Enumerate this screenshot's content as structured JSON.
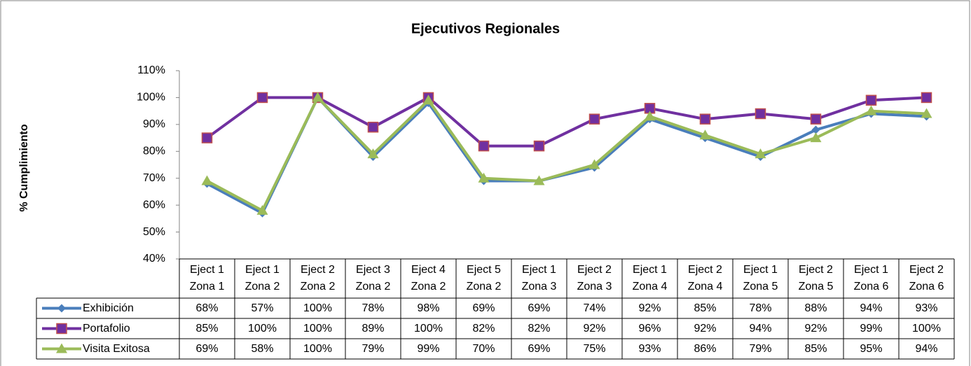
{
  "chart_data": {
    "type": "line",
    "title": "Ejecutivos Regionales",
    "y_label": "% Cumplimiento",
    "categories": [
      "Eject 1 Zona 1",
      "Eject 1 Zona 2",
      "Eject 2 Zona 2",
      "Eject 3 Zona 2",
      "Eject 4 Zona 2",
      "Eject 5 Zona 2",
      "Eject 1 Zona 3",
      "Eject 2 Zona 3",
      "Eject 1 Zona 4",
      "Eject 2 Zona 4",
      "Eject 1 Zona 5",
      "Eject 2 Zona 5",
      "Eject 1 Zona 6",
      "Eject 2 Zona 6"
    ],
    "series": [
      {
        "name": "Exhibición",
        "color": "#4a7ebb",
        "marker": "diamond",
        "values": [
          68,
          57,
          100,
          78,
          98,
          69,
          69,
          74,
          92,
          85,
          78,
          88,
          94,
          93
        ],
        "value_labels": [
          "68%",
          "57%",
          "100%",
          "78%",
          "98%",
          "69%",
          "69%",
          "74%",
          "92%",
          "85%",
          "78%",
          "88%",
          "94%",
          "93%"
        ]
      },
      {
        "name": "Portafolio",
        "color": "#7030a0",
        "marker": "square",
        "values": [
          85,
          100,
          100,
          89,
          100,
          82,
          82,
          92,
          96,
          92,
          94,
          92,
          99,
          100
        ],
        "value_labels": [
          "85%",
          "100%",
          "100%",
          "89%",
          "100%",
          "82%",
          "82%",
          "92%",
          "96%",
          "92%",
          "94%",
          "92%",
          "99%",
          "100%"
        ]
      },
      {
        "name": "Visita Exitosa",
        "color": "#9bbb59",
        "marker": "triangle",
        "values": [
          69,
          58,
          100,
          79,
          99,
          70,
          69,
          75,
          93,
          86,
          79,
          85,
          95,
          94
        ],
        "value_labels": [
          "69%",
          "58%",
          "100%",
          "79%",
          "99%",
          "70%",
          "69%",
          "75%",
          "93%",
          "86%",
          "79%",
          "85%",
          "95%",
          "94%"
        ]
      }
    ],
    "ylim": [
      40,
      110
    ],
    "yticks": [
      {
        "value": 40,
        "label": "40%"
      },
      {
        "value": 50,
        "label": "50%"
      },
      {
        "value": 60,
        "label": "60%"
      },
      {
        "value": 70,
        "label": "70%"
      },
      {
        "value": 80,
        "label": "80%"
      },
      {
        "value": 90,
        "label": "90%"
      },
      {
        "value": 100,
        "label": "100%"
      },
      {
        "value": 110,
        "label": "110%"
      }
    ],
    "grid": false,
    "data_table": true
  }
}
